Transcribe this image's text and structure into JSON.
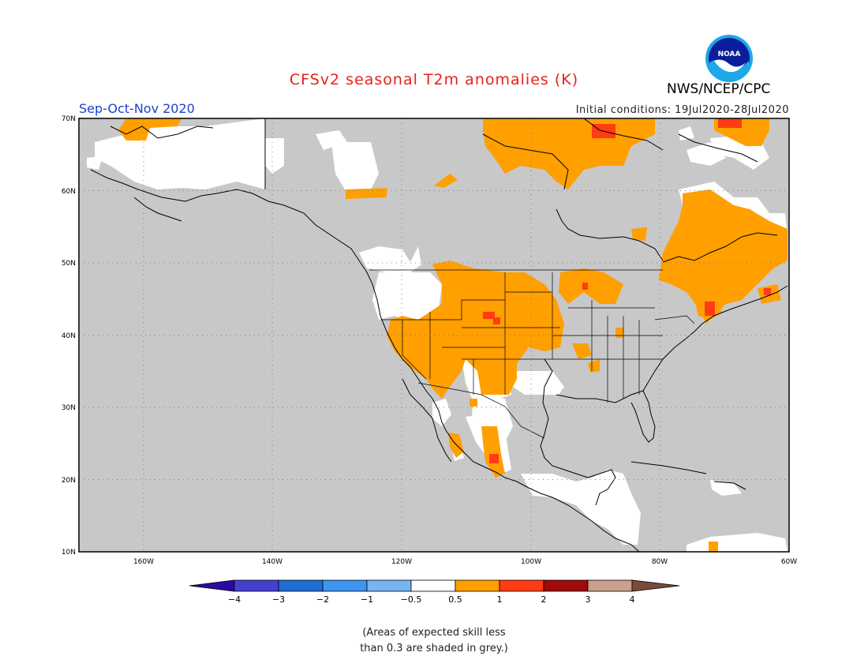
{
  "header": {
    "title": "CFSv2 seasonal T2m anomalies (K)",
    "season": "Sep-Oct-Nov 2020",
    "initial_conditions": "Initial conditions: 19Jul2020-28Jul2020",
    "agency": "NWS/NCEP/CPC",
    "logo_text": "NOAA"
  },
  "map": {
    "region": "North America",
    "lon_range": [
      -170,
      -60
    ],
    "lat_range": [
      10,
      70
    ],
    "lat_labels": [
      "70N",
      "60N",
      "50N",
      "40N",
      "30N",
      "20N",
      "10N"
    ],
    "lon_labels": [
      "160W",
      "140W",
      "120W",
      "100W",
      "80W",
      "60W"
    ],
    "colors": {
      "ocean_skill_grey": "#c8c8c8",
      "land_no_signal": "#ffffff",
      "warm_0_5_1": "#ff9f00",
      "warm_1_2": "#ff3c14"
    }
  },
  "legend": {
    "ticks": [
      "-4",
      "-3",
      "-2",
      "-1",
      "-0.5",
      "0.5",
      "1",
      "2",
      "3",
      "4"
    ],
    "colors": [
      "#2a0aa0",
      "#4640d2",
      "#1e6ed2",
      "#3c96f0",
      "#78b4f0",
      "#ffffff",
      "#ff9f00",
      "#ff3c14",
      "#a00a0a",
      "#c8a08c",
      "#7a4a3a"
    ]
  },
  "footnote": {
    "line1": "(Areas of expected skill less",
    "line2": "than 0.3 are shaded in grey.)"
  }
}
